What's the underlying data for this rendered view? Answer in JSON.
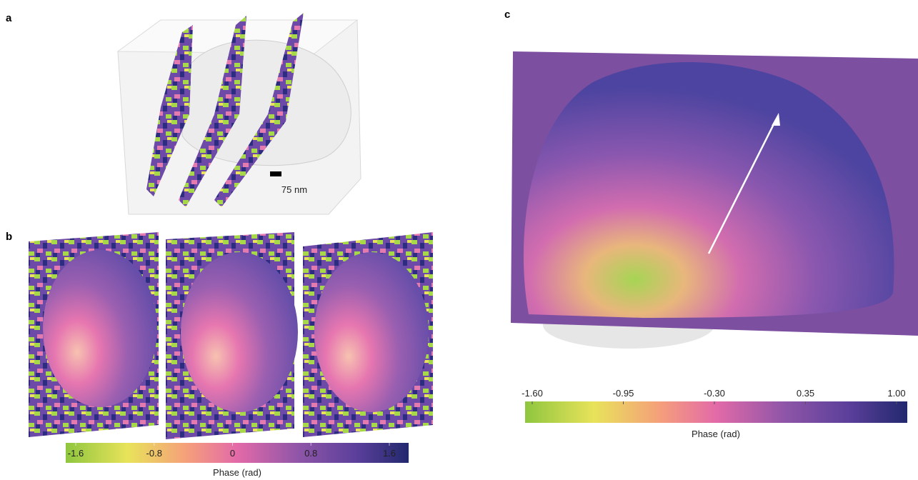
{
  "panels": {
    "a": {
      "label": "a",
      "scale_bar": "75 nm"
    },
    "b": {
      "label": "b",
      "colorbar": {
        "title": "Phase (rad)",
        "ticks": [
          -1.6,
          -0.8,
          0,
          0.8,
          1.6
        ]
      }
    },
    "c": {
      "label": "c",
      "colorbar": {
        "title": "Phase (rad)",
        "ticks": [
          {
            "value": -1.6,
            "label": "-1.60"
          },
          {
            "value": -0.95,
            "label": "-0.95"
          },
          {
            "value": -0.3,
            "label": "-0.30"
          },
          {
            "value": 0.35,
            "label": "0.35"
          },
          {
            "value": 1,
            "label": "1.00"
          }
        ]
      }
    }
  }
}
